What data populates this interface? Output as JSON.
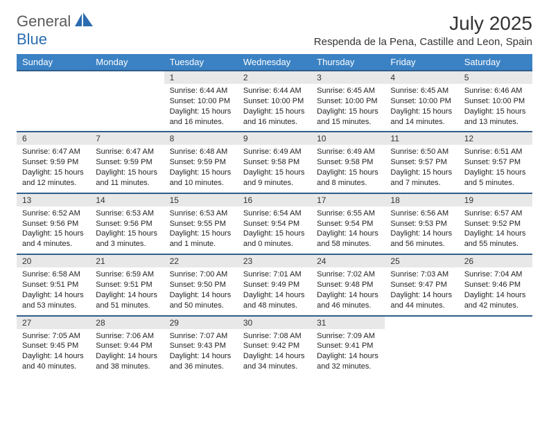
{
  "logo": {
    "general": "General",
    "blue": "Blue"
  },
  "title": "July 2025",
  "location": "Respenda de la Pena, Castille and Leon, Spain",
  "colors": {
    "header_bg": "#3b82c4",
    "header_text": "#ffffff",
    "row_border": "#2f5d8a",
    "daynum_bg": "#e8e8e8",
    "page_bg": "#ffffff",
    "logo_blue": "#2b6cb0",
    "logo_gray": "#5a5a5a"
  },
  "day_headers": [
    "Sunday",
    "Monday",
    "Tuesday",
    "Wednesday",
    "Thursday",
    "Friday",
    "Saturday"
  ],
  "weeks": [
    [
      null,
      null,
      {
        "n": "1",
        "sr": "6:44 AM",
        "ss": "10:00 PM",
        "dl": "15 hours and 16 minutes."
      },
      {
        "n": "2",
        "sr": "6:44 AM",
        "ss": "10:00 PM",
        "dl": "15 hours and 16 minutes."
      },
      {
        "n": "3",
        "sr": "6:45 AM",
        "ss": "10:00 PM",
        "dl": "15 hours and 15 minutes."
      },
      {
        "n": "4",
        "sr": "6:45 AM",
        "ss": "10:00 PM",
        "dl": "15 hours and 14 minutes."
      },
      {
        "n": "5",
        "sr": "6:46 AM",
        "ss": "10:00 PM",
        "dl": "15 hours and 13 minutes."
      }
    ],
    [
      {
        "n": "6",
        "sr": "6:47 AM",
        "ss": "9:59 PM",
        "dl": "15 hours and 12 minutes."
      },
      {
        "n": "7",
        "sr": "6:47 AM",
        "ss": "9:59 PM",
        "dl": "15 hours and 11 minutes."
      },
      {
        "n": "8",
        "sr": "6:48 AM",
        "ss": "9:59 PM",
        "dl": "15 hours and 10 minutes."
      },
      {
        "n": "9",
        "sr": "6:49 AM",
        "ss": "9:58 PM",
        "dl": "15 hours and 9 minutes."
      },
      {
        "n": "10",
        "sr": "6:49 AM",
        "ss": "9:58 PM",
        "dl": "15 hours and 8 minutes."
      },
      {
        "n": "11",
        "sr": "6:50 AM",
        "ss": "9:57 PM",
        "dl": "15 hours and 7 minutes."
      },
      {
        "n": "12",
        "sr": "6:51 AM",
        "ss": "9:57 PM",
        "dl": "15 hours and 5 minutes."
      }
    ],
    [
      {
        "n": "13",
        "sr": "6:52 AM",
        "ss": "9:56 PM",
        "dl": "15 hours and 4 minutes."
      },
      {
        "n": "14",
        "sr": "6:53 AM",
        "ss": "9:56 PM",
        "dl": "15 hours and 3 minutes."
      },
      {
        "n": "15",
        "sr": "6:53 AM",
        "ss": "9:55 PM",
        "dl": "15 hours and 1 minute."
      },
      {
        "n": "16",
        "sr": "6:54 AM",
        "ss": "9:54 PM",
        "dl": "15 hours and 0 minutes."
      },
      {
        "n": "17",
        "sr": "6:55 AM",
        "ss": "9:54 PM",
        "dl": "14 hours and 58 minutes."
      },
      {
        "n": "18",
        "sr": "6:56 AM",
        "ss": "9:53 PM",
        "dl": "14 hours and 56 minutes."
      },
      {
        "n": "19",
        "sr": "6:57 AM",
        "ss": "9:52 PM",
        "dl": "14 hours and 55 minutes."
      }
    ],
    [
      {
        "n": "20",
        "sr": "6:58 AM",
        "ss": "9:51 PM",
        "dl": "14 hours and 53 minutes."
      },
      {
        "n": "21",
        "sr": "6:59 AM",
        "ss": "9:51 PM",
        "dl": "14 hours and 51 minutes."
      },
      {
        "n": "22",
        "sr": "7:00 AM",
        "ss": "9:50 PM",
        "dl": "14 hours and 50 minutes."
      },
      {
        "n": "23",
        "sr": "7:01 AM",
        "ss": "9:49 PM",
        "dl": "14 hours and 48 minutes."
      },
      {
        "n": "24",
        "sr": "7:02 AM",
        "ss": "9:48 PM",
        "dl": "14 hours and 46 minutes."
      },
      {
        "n": "25",
        "sr": "7:03 AM",
        "ss": "9:47 PM",
        "dl": "14 hours and 44 minutes."
      },
      {
        "n": "26",
        "sr": "7:04 AM",
        "ss": "9:46 PM",
        "dl": "14 hours and 42 minutes."
      }
    ],
    [
      {
        "n": "27",
        "sr": "7:05 AM",
        "ss": "9:45 PM",
        "dl": "14 hours and 40 minutes."
      },
      {
        "n": "28",
        "sr": "7:06 AM",
        "ss": "9:44 PM",
        "dl": "14 hours and 38 minutes."
      },
      {
        "n": "29",
        "sr": "7:07 AM",
        "ss": "9:43 PM",
        "dl": "14 hours and 36 minutes."
      },
      {
        "n": "30",
        "sr": "7:08 AM",
        "ss": "9:42 PM",
        "dl": "14 hours and 34 minutes."
      },
      {
        "n": "31",
        "sr": "7:09 AM",
        "ss": "9:41 PM",
        "dl": "14 hours and 32 minutes."
      },
      null,
      null
    ]
  ],
  "labels": {
    "sunrise": "Sunrise:",
    "sunset": "Sunset:",
    "daylight": "Daylight:"
  }
}
